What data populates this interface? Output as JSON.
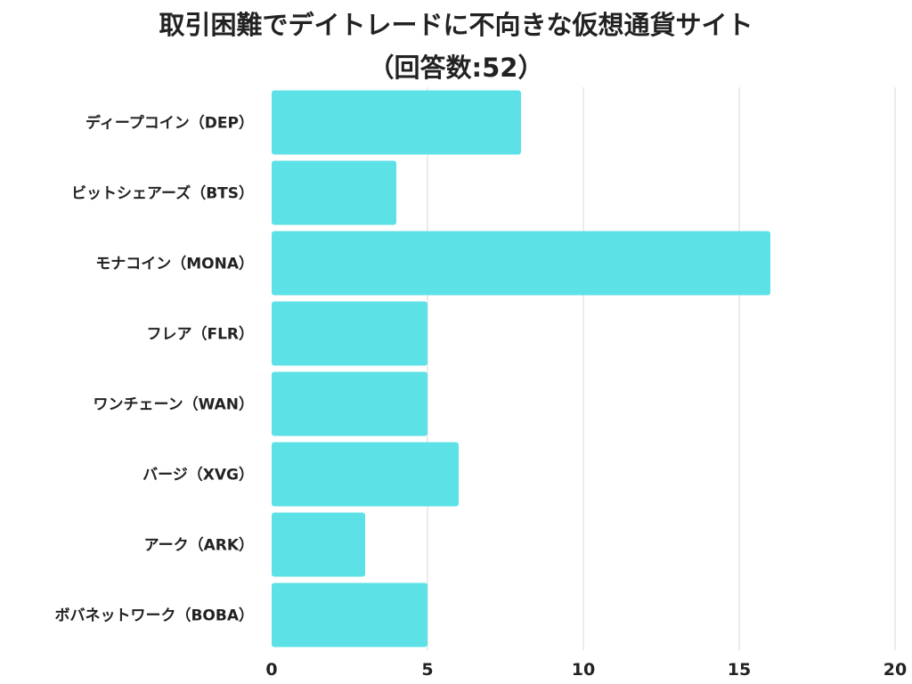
{
  "title_line1": "取引困難でデイトレードに不向きな仮想通貨サイト",
  "title_line2": "（回答数:52）",
  "chart_data": {
    "type": "bar",
    "orientation": "horizontal",
    "title": "取引困難でデイトレードに不向きな仮想通貨サイト（回答数:52）",
    "categories": [
      "ディープコイン（DEP）",
      "ビットシェアーズ（BTS）",
      "モナコイン（MONA）",
      "フレア（FLR）",
      "ワンチェーン（WAN）",
      "バージ（XVG）",
      "アーク（ARK）",
      "ボバネットワーク（BOBA）"
    ],
    "values": [
      8,
      4,
      16,
      5,
      5,
      6,
      3,
      5
    ],
    "xlim": [
      0,
      20
    ],
    "xticks": [
      0,
      5,
      10,
      15,
      20
    ],
    "grid": true,
    "bar_color": "#5ce1e6",
    "grid_color": "#e6e6e6",
    "legend": "none"
  }
}
